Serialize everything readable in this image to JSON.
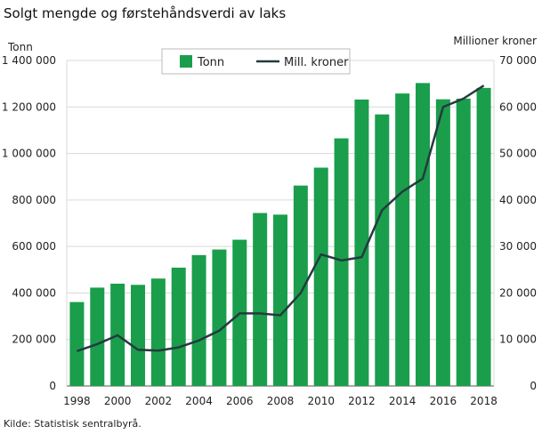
{
  "chart_data": {
    "type": "bar",
    "title": "Solgt mengde og førstehåndsverdi av laks",
    "source": "Kilde: Statistisk sentralbyrå.",
    "categories": [
      1998,
      1999,
      2000,
      2001,
      2002,
      2003,
      2004,
      2005,
      2006,
      2007,
      2008,
      2009,
      2010,
      2011,
      2012,
      2013,
      2014,
      2015,
      2016,
      2017,
      2018
    ],
    "x_tick_labels": [
      "1998",
      "2000",
      "2002",
      "2004",
      "2006",
      "2008",
      "2010",
      "2012",
      "2014",
      "2016",
      "2018"
    ],
    "y_left": {
      "label": "Tonn",
      "ylim": [
        0,
        1400000
      ],
      "tick_labels": [
        "0",
        "200 000",
        "400 000",
        "600 000",
        "800 000",
        "1 000 000",
        "1 200 000",
        "1 400 000"
      ]
    },
    "y_right": {
      "label": "Millioner  kroner",
      "ylim": [
        0,
        70000
      ],
      "tick_labels": [
        "0",
        "10 000",
        "20 000",
        "30 000",
        "40 000",
        "50 000",
        "60 000",
        "70 000"
      ]
    },
    "grid": true,
    "legend_position": "top-center",
    "series": [
      {
        "name": "Tonn",
        "type": "bar",
        "axis": "left",
        "color": "#1a9e4b",
        "values": [
          361000,
          423000,
          440000,
          435000,
          462000,
          509000,
          563000,
          587000,
          629000,
          744000,
          737000,
          862000,
          939000,
          1065000,
          1232000,
          1168000,
          1258000,
          1303000,
          1233000,
          1236000,
          1282000
        ]
      },
      {
        "name": "Mill. kroner",
        "type": "line",
        "axis": "right",
        "color": "#253a40",
        "values": [
          7500,
          9000,
          10900,
          7800,
          7600,
          8300,
          9800,
          11900,
          15600,
          15600,
          15200,
          20000,
          28300,
          27000,
          27700,
          37800,
          41800,
          44600,
          60000,
          61800,
          64600
        ]
      }
    ]
  }
}
